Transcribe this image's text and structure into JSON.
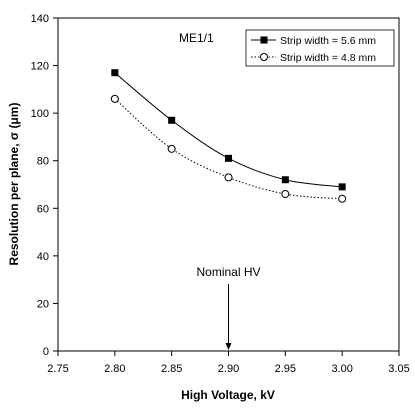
{
  "chart_data": {
    "type": "line",
    "title": "",
    "panel_label": "ME1/1",
    "xlabel": "High Voltage, kV",
    "ylabel": "Resolution per plane, σ (μm)",
    "xlim": [
      2.75,
      3.05
    ],
    "ylim": [
      0,
      140
    ],
    "xticks": [
      2.75,
      2.8,
      2.85,
      2.9,
      2.95,
      3.0,
      3.05
    ],
    "xtick_labels": [
      "2.75",
      "2.80",
      "2.85",
      "2.90",
      "2.95",
      "3.00",
      "3.05"
    ],
    "yticks": [
      0,
      20,
      40,
      60,
      80,
      100,
      120,
      140
    ],
    "ytick_labels": [
      "0",
      "20",
      "40",
      "60",
      "80",
      "100",
      "120",
      "140"
    ],
    "grid": false,
    "legend_position": "top-right",
    "series": [
      {
        "name": "Strip width = 5.6 mm",
        "marker": "filled-square",
        "line_style": "solid",
        "color": "#000000",
        "x": [
          2.8,
          2.85,
          2.9,
          2.95,
          3.0
        ],
        "y": [
          117,
          97,
          81,
          72,
          69
        ]
      },
      {
        "name": "Strip width = 4.8 mm",
        "marker": "open-circle",
        "line_style": "dotted",
        "color": "#000000",
        "x": [
          2.8,
          2.85,
          2.9,
          2.95,
          3.0
        ],
        "y": [
          106,
          85,
          73,
          66,
          64
        ]
      }
    ],
    "annotations": [
      {
        "text": "Nominal HV",
        "x": 2.9,
        "arrow": "down-to-axis"
      }
    ]
  }
}
